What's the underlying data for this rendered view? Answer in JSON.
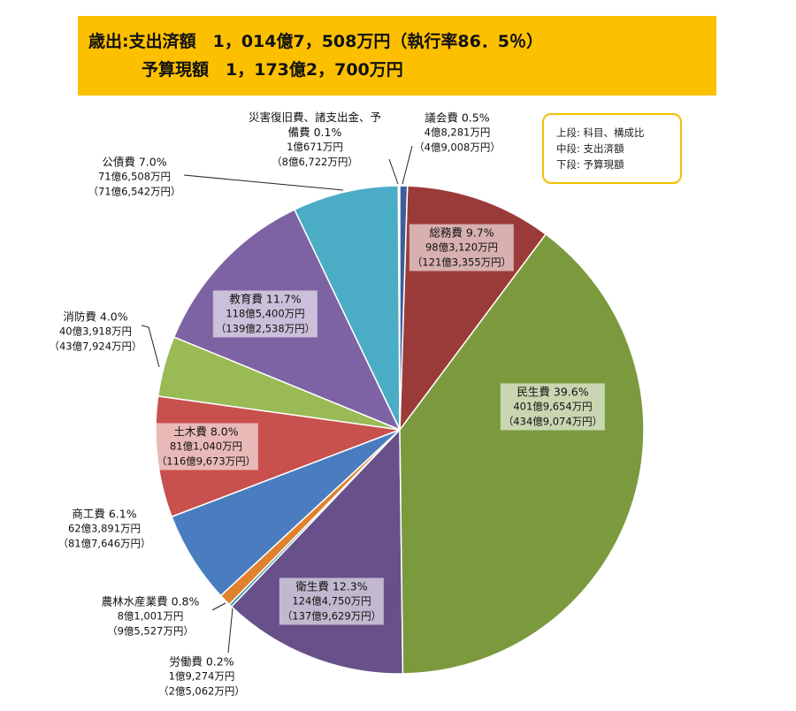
{
  "header": {
    "line1": "歳出:支出済額　1，014億7，508万円（執行率86．5％）",
    "line2": "予算現額　1，173億2，700万円"
  },
  "legend_note": [
    "上段: 科目、構成比",
    "中段: 支出済額",
    "下段: 予算現額"
  ],
  "chart_data": {
    "type": "pie",
    "categories": [
      "議会費",
      "総務費",
      "民生費",
      "衛生費",
      "労働費",
      "農林水産業費",
      "商工費",
      "土木費",
      "消防費",
      "教育費",
      "公債費",
      "災害復旧費、諸支出金、予備費"
    ],
    "values": [
      0.5,
      9.7,
      39.6,
      12.3,
      0.2,
      0.8,
      6.1,
      8.0,
      4.0,
      11.7,
      7.0,
      0.1
    ],
    "value_labels": [
      "0.5%",
      "9.7%",
      "39.6%",
      "12.3%",
      "0.2%",
      "0.8%",
      "6.1%",
      "8.0%",
      "4.0%",
      "11.7%",
      "7.0%",
      "0.1%"
    ],
    "amounts": [
      "4億8,281万円",
      "98億3,120万円",
      "401億9,654万円",
      "124億4,750万円",
      "1億9,274万円",
      "8億1,001万円",
      "62億3,891万円",
      "81億1,040万円",
      "40億3,918万円",
      "118億5,400万円",
      "71億6,508万円",
      "1億671万円"
    ],
    "budgets": [
      "（4億9,008万円）",
      "（121億3,355万円）",
      "（434億9,074万円）",
      "（137億9,629万円）",
      "（2億5,062万円）",
      "（9億5,527万円）",
      "（81億7,646万円）",
      "（116億9,673万円）",
      "（43億7,924万円）",
      "（139億2,538万円）",
      "（71億6,542万円）",
      "（8億6,722万円）"
    ],
    "colors": [
      "#3d5e99",
      "#9b3b39",
      "#7b9a3d",
      "#68508a",
      "#3f8fb0",
      "#e0812e",
      "#4a7dc0",
      "#c8504d",
      "#99ba55",
      "#7e63a4",
      "#4bacc6",
      "#f2b27a"
    ]
  }
}
